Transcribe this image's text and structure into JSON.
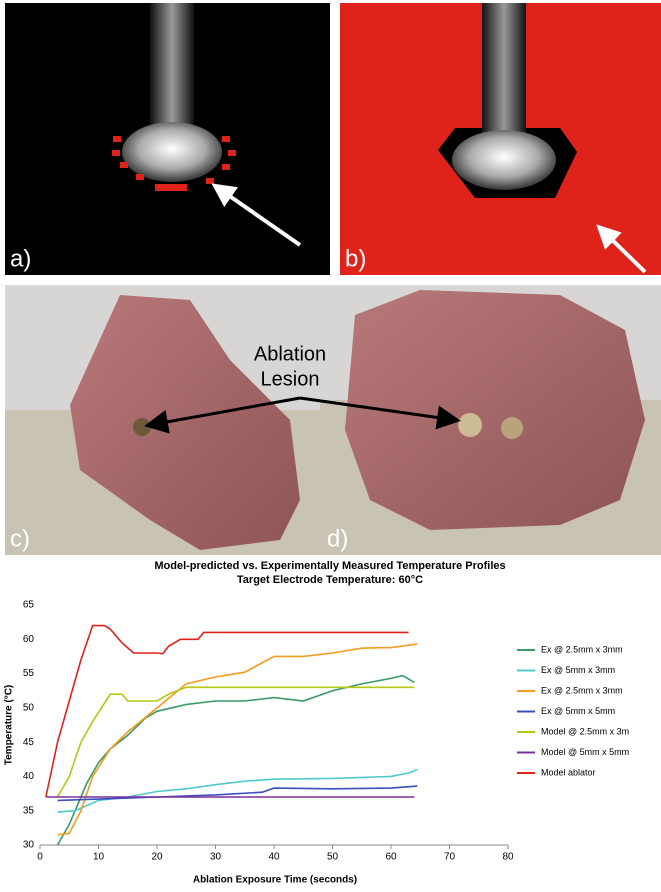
{
  "panels": {
    "labels": [
      "a)",
      "b)",
      "c)",
      "d)"
    ],
    "annotation": [
      "Ablation",
      "Lesion"
    ]
  },
  "chart_data": {
    "type": "line",
    "title": "Model-predicted vs. Experimentally Measured Temperature Profiles",
    "subtitle": "Target Electrode Temperature: 60°C",
    "xlabel": "Ablation Exposure Time (seconds)",
    "ylabel": "Temperature (°C)",
    "xlim": [
      0,
      80
    ],
    "xticks": [
      0,
      10,
      20,
      30,
      40,
      50,
      60,
      70,
      80
    ],
    "ylim": [
      30,
      65
    ],
    "yticks": [
      30,
      35,
      40,
      45,
      50,
      55,
      60,
      65
    ],
    "grid": false,
    "legend": "right",
    "series": [
      {
        "name": "Ex @ 2.5mm x 3mm",
        "color": "#3a9a6a",
        "x": [
          3,
          5,
          8,
          10,
          12,
          15,
          18,
          20,
          25,
          30,
          35,
          40,
          45,
          50,
          55,
          60,
          62,
          64
        ],
        "values": [
          30,
          33,
          39,
          42,
          44,
          46,
          48.5,
          49.5,
          50.5,
          51,
          51,
          51.5,
          51,
          52.5,
          53.5,
          54.3,
          54.7,
          53.7
        ]
      },
      {
        "name": "Ex @ 5mm x 3mm",
        "color": "#4fc9cc",
        "x": [
          3,
          6,
          10,
          15,
          20,
          25,
          30,
          35,
          40,
          50,
          60,
          63,
          64.5
        ],
        "values": [
          34.8,
          35,
          36.5,
          37,
          37.8,
          38.2,
          38.8,
          39.3,
          39.6,
          39.7,
          40,
          40.5,
          41
        ]
      },
      {
        "name": "Ex @ 2.5mm x 3mm",
        "color": "#f39c1e",
        "x": [
          3,
          5,
          7,
          9,
          12,
          15,
          20,
          25,
          30,
          35,
          40,
          45,
          50,
          55,
          60,
          64.5
        ],
        "values": [
          31.5,
          31.7,
          35,
          40,
          44,
          46.5,
          50,
          53.5,
          54.5,
          55.2,
          57.5,
          57.5,
          58,
          58.7,
          58.8,
          59.3
        ]
      },
      {
        "name": "Ex @ 5mm x 5mm",
        "color": "#3a4fc0",
        "x": [
          3,
          10,
          20,
          30,
          38,
          40,
          50,
          60,
          64.5
        ],
        "values": [
          36.5,
          36.7,
          37,
          37.3,
          37.7,
          38.3,
          38.2,
          38.3,
          38.6
        ]
      },
      {
        "name": "Model @ 2.5mm x 3m",
        "color": "#b5c814",
        "x": [
          3,
          5,
          7,
          9,
          12,
          14,
          15,
          20,
          22,
          25,
          64
        ],
        "values": [
          37,
          40,
          45,
          48,
          52,
          52,
          51,
          51,
          52,
          53,
          53
        ]
      },
      {
        "name": "Model @ 5mm x 5mm",
        "color": "#7a2e9a",
        "x": [
          1,
          64
        ],
        "values": [
          37,
          37
        ]
      },
      {
        "name": "Model ablator",
        "color": "#e0231a",
        "x": [
          1,
          3,
          5,
          7,
          9,
          11,
          12,
          14,
          16,
          20,
          21,
          22,
          24,
          27,
          28,
          63
        ],
        "values": [
          37,
          45,
          51,
          57,
          62,
          62,
          61.5,
          59.5,
          58,
          58,
          57.9,
          59,
          60,
          60,
          61,
          61
        ]
      }
    ]
  }
}
